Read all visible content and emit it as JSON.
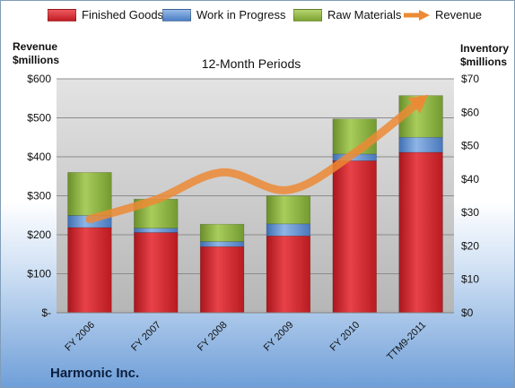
{
  "chart_data": {
    "type": "bar",
    "stacked": true,
    "title": "12-Month Periods",
    "categories": [
      "FY 2006",
      "FY 2007",
      "FY 2008",
      "FY 2009",
      "FY 2010",
      "TTM9-2011"
    ],
    "series": [
      {
        "name": "Finished Goods",
        "axis": "right",
        "color": "#d2232a",
        "values": [
          25.5,
          24,
          19.8,
          23,
          45.5,
          48
        ]
      },
      {
        "name": "Work in Progress",
        "axis": "right",
        "color": "#5b8fd2",
        "values": [
          3.6,
          1.3,
          1.5,
          3.6,
          2,
          4.5
        ]
      },
      {
        "name": "Raw Materials",
        "axis": "right",
        "color": "#8bb040",
        "values": [
          12.9,
          8.7,
          5.2,
          8.4,
          10.5,
          12.5
        ]
      },
      {
        "name": "Revenue",
        "type": "line",
        "axis": "left",
        "color": "#ec8a35",
        "values": [
          240,
          290,
          360,
          315,
          410,
          545
        ]
      }
    ],
    "ylabel_left": "Revenue $millions",
    "ylabel_right": "Inventory $millions",
    "ylim_left": [
      0,
      600
    ],
    "ylim_right": [
      0,
      70
    ],
    "yticks_left": [
      "$-",
      "$100",
      "$200",
      "$300",
      "$400",
      "$500",
      "$600"
    ],
    "yticks_right": [
      "$0",
      "$10",
      "$20",
      "$30",
      "$40",
      "$50",
      "$60",
      "$70"
    ],
    "grid": true,
    "legend_position": "top"
  },
  "left_axis_title": [
    "Revenue",
    "$millions"
  ],
  "right_axis_title": [
    "Inventory",
    "$millions"
  ],
  "footer": {
    "company": "Harmonic Inc."
  },
  "colors": {
    "plot_background": "#c6c6c6",
    "frame_bottom": "#6f9fd8"
  }
}
